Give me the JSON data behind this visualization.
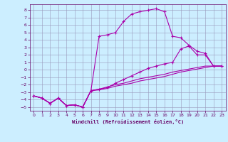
{
  "title": "",
  "xlabel": "Windchill (Refroidissement éolien,°C)",
  "ylabel": "",
  "xlim": [
    -0.5,
    23.5
  ],
  "ylim": [
    -5.5,
    8.8
  ],
  "yticks": [
    -5,
    -4,
    -3,
    -2,
    -1,
    0,
    1,
    2,
    3,
    4,
    5,
    6,
    7,
    8
  ],
  "xticks": [
    0,
    1,
    2,
    3,
    4,
    5,
    6,
    7,
    8,
    9,
    10,
    11,
    12,
    13,
    14,
    15,
    16,
    17,
    18,
    19,
    20,
    21,
    22,
    23
  ],
  "background_color": "#cceeff",
  "grid_color": "#9999bb",
  "line_color": "#aa00aa",
  "x_main": [
    0,
    1,
    2,
    3,
    4,
    5,
    6,
    7,
    8,
    9,
    10,
    11,
    12,
    13,
    14,
    15,
    16,
    17,
    18,
    19,
    20,
    21,
    22,
    23
  ],
  "y_peak": [
    -3.5,
    -3.8,
    -4.5,
    -3.8,
    -4.8,
    -4.7,
    -5.0,
    -2.8,
    4.5,
    4.7,
    5.0,
    6.5,
    7.5,
    7.8,
    8.0,
    8.2,
    7.8,
    4.5,
    4.3,
    3.3,
    2.5,
    2.2,
    0.5,
    0.5
  ],
  "y_mid": [
    -3.5,
    -3.8,
    -4.5,
    -3.8,
    -4.8,
    -4.7,
    -5.0,
    -2.8,
    -2.6,
    -2.4,
    -1.8,
    -1.3,
    -0.8,
    -0.3,
    0.2,
    0.5,
    0.8,
    1.0,
    2.8,
    3.2,
    2.0,
    2.0,
    0.5,
    0.5
  ],
  "y_low1": [
    -3.5,
    -3.8,
    -4.5,
    -3.8,
    -4.8,
    -4.7,
    -5.0,
    -2.8,
    -2.6,
    -2.3,
    -2.0,
    -1.8,
    -1.5,
    -1.2,
    -1.0,
    -0.8,
    -0.6,
    -0.3,
    -0.1,
    0.1,
    0.3,
    0.5,
    0.5,
    0.5
  ],
  "y_low2": [
    -3.5,
    -3.8,
    -4.5,
    -3.8,
    -4.8,
    -4.7,
    -5.0,
    -2.8,
    -2.7,
    -2.5,
    -2.2,
    -2.0,
    -1.8,
    -1.5,
    -1.3,
    -1.1,
    -0.9,
    -0.6,
    -0.3,
    -0.1,
    0.1,
    0.3,
    0.5,
    0.5
  ]
}
